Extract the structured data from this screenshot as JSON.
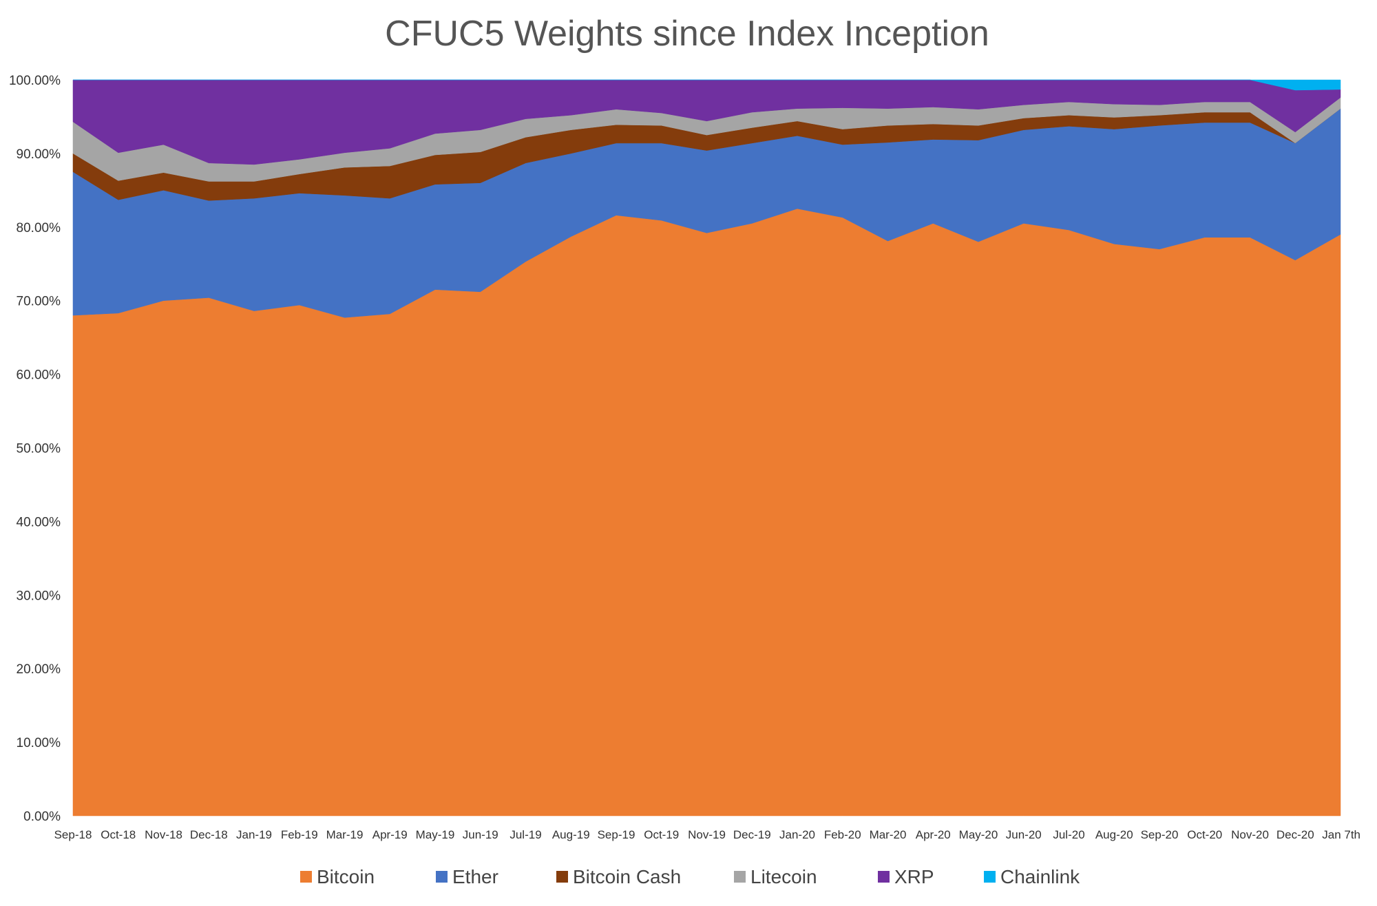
{
  "chart_data": {
    "type": "area",
    "stacked": true,
    "title": "CFUC5 Weights since Index Inception",
    "xlabel": "",
    "ylabel": "",
    "ylim": [
      0,
      100
    ],
    "y_tick_labels": [
      "0.00%",
      "10.00%",
      "20.00%",
      "30.00%",
      "40.00%",
      "50.00%",
      "60.00%",
      "70.00%",
      "80.00%",
      "90.00%",
      "100.00%"
    ],
    "grid": false,
    "legend_position": "bottom",
    "categories": [
      "Sep-18",
      "Oct-18",
      "Nov-18",
      "Dec-18",
      "Jan-19",
      "Feb-19",
      "Mar-19",
      "Apr-19",
      "May-19",
      "Jun-19",
      "Jul-19",
      "Aug-19",
      "Sep-19",
      "Oct-19",
      "Nov-19",
      "Dec-19",
      "Jan-20",
      "Feb-20",
      "Mar-20",
      "Apr-20",
      "May-20",
      "Jun-20",
      "Jul-20",
      "Aug-20",
      "Sep-20",
      "Oct-20",
      "Nov-20",
      "Dec-20",
      "Jan 7th"
    ],
    "series": [
      {
        "name": "Bitcoin",
        "color": "#ED7D31",
        "values": [
          68.0,
          68.3,
          70.0,
          70.4,
          68.6,
          69.4,
          67.7,
          68.2,
          71.5,
          71.2,
          75.3,
          78.7,
          81.6,
          80.9,
          79.2,
          80.5,
          82.5,
          81.3,
          78.1,
          80.5,
          78.0,
          80.5,
          79.6,
          77.7,
          77.0,
          78.6,
          78.6,
          75.5,
          79.0
        ]
      },
      {
        "name": "Ether",
        "color": "#4472C4",
        "values": [
          19.5,
          15.4,
          15.0,
          13.2,
          15.3,
          15.2,
          16.6,
          15.7,
          14.3,
          14.8,
          13.4,
          11.3,
          9.8,
          10.5,
          11.2,
          10.9,
          9.9,
          9.9,
          13.4,
          11.4,
          13.8,
          12.7,
          14.1,
          15.6,
          16.8,
          15.6,
          15.6,
          15.9,
          17.1
        ]
      },
      {
        "name": "Bitcoin Cash",
        "color": "#843C0C",
        "values": [
          2.5,
          2.6,
          2.4,
          2.6,
          2.3,
          2.6,
          3.8,
          4.4,
          4.0,
          4.2,
          3.5,
          3.2,
          2.5,
          2.4,
          2.1,
          2.1,
          2.0,
          2.1,
          2.3,
          2.1,
          2.0,
          1.6,
          1.5,
          1.6,
          1.4,
          1.4,
          1.4,
          0.0,
          0.0
        ]
      },
      {
        "name": "Litecoin",
        "color": "#A5A5A5",
        "values": [
          4.3,
          3.8,
          3.8,
          2.5,
          2.3,
          2.0,
          2.0,
          2.4,
          2.9,
          3.0,
          2.5,
          2.0,
          2.1,
          1.7,
          1.9,
          2.1,
          1.7,
          2.9,
          2.3,
          2.3,
          2.2,
          1.8,
          1.8,
          1.8,
          1.4,
          1.4,
          1.4,
          1.5,
          1.5
        ]
      },
      {
        "name": "XRP",
        "color": "#7030A0",
        "values": [
          5.7,
          9.9,
          8.8,
          11.3,
          11.5,
          10.8,
          9.9,
          9.3,
          7.3,
          6.8,
          5.3,
          4.8,
          4.0,
          4.5,
          5.6,
          4.4,
          3.9,
          3.8,
          3.9,
          3.7,
          4.0,
          3.4,
          3.0,
          3.3,
          3.4,
          3.0,
          3.0,
          5.7,
          1.1
        ]
      },
      {
        "name": "Chainlink",
        "color": "#00B0F0",
        "values": [
          0,
          0,
          0,
          0,
          0,
          0,
          0,
          0,
          0,
          0,
          0,
          0,
          0,
          0,
          0,
          0,
          0,
          0,
          0,
          0,
          0,
          0,
          0,
          0,
          0,
          0,
          0,
          1.4,
          1.3
        ]
      }
    ]
  }
}
